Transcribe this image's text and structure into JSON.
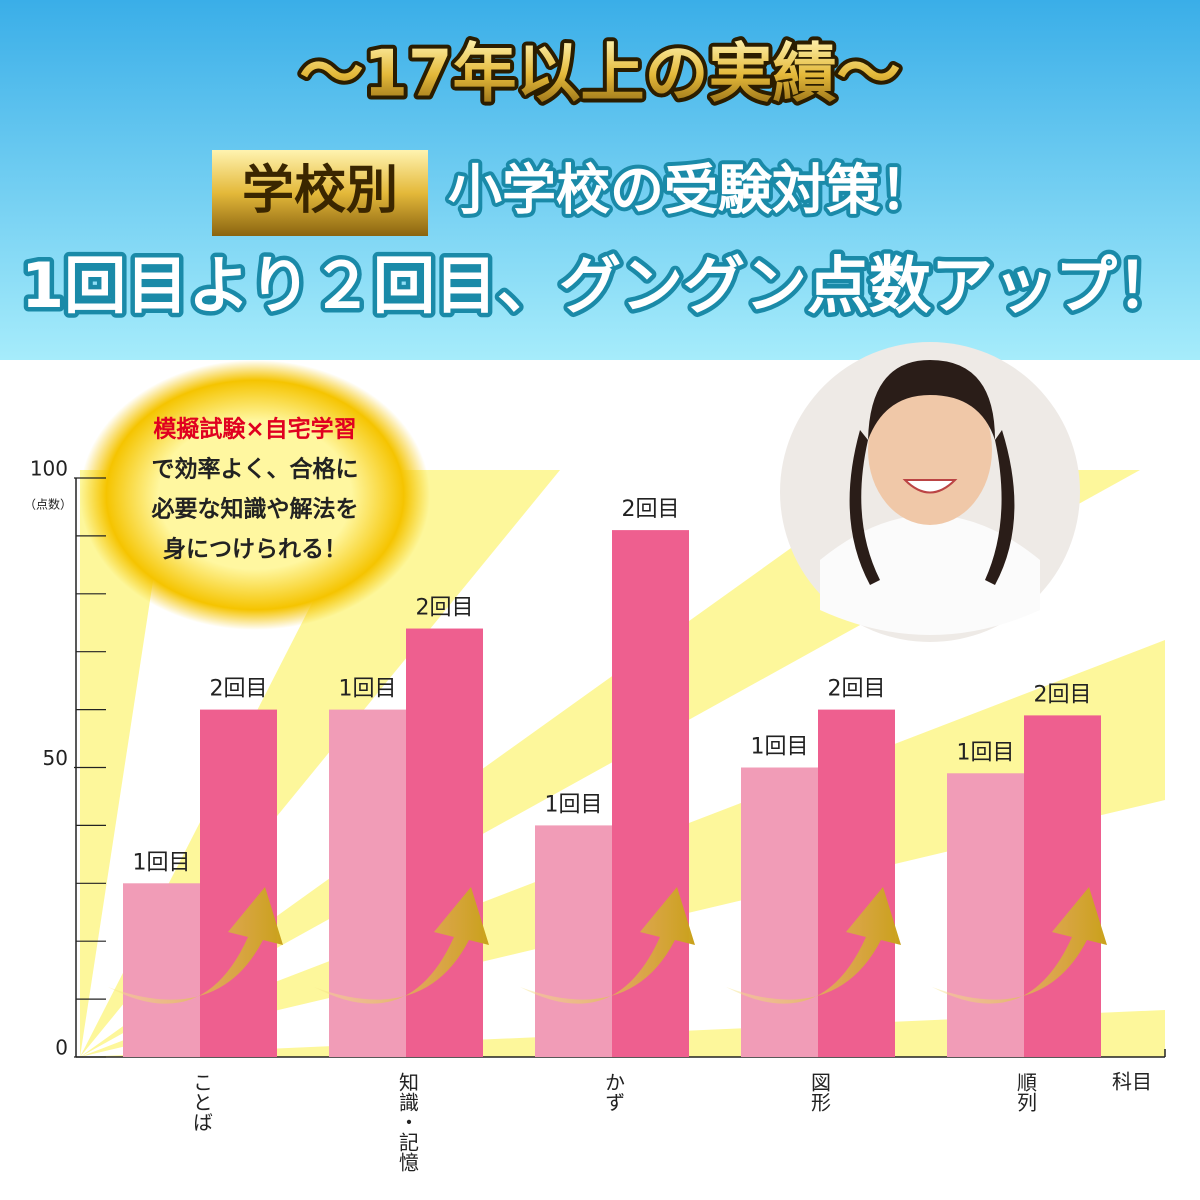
{
  "header": {
    "title": "〜17年以上の実績〜",
    "badge": "学校別",
    "line1": "小学校の受験対策！",
    "line2": "1回目より２回目、グングン点数アップ！"
  },
  "bubble": {
    "lines": [
      "模擬試験×自宅学習",
      "で効率よく、合格に",
      "必要な知識や解法を",
      "身につけられる！"
    ]
  },
  "chart_data": {
    "type": "bar",
    "categories": [
      "ことば",
      "知識・記憶",
      "かず",
      "図形",
      "順列"
    ],
    "series": [
      {
        "name": "1回目",
        "color": "#f19cb7",
        "values": [
          30,
          60,
          40,
          50,
          49
        ]
      },
      {
        "name": "2回目",
        "color": "#ee5f8f",
        "values": [
          60,
          74,
          91,
          60,
          59
        ]
      }
    ],
    "ylim": [
      0,
      100
    ],
    "yticks": [
      0,
      50,
      100
    ],
    "yminorticks": [
      10,
      20,
      30,
      40,
      60,
      70,
      80,
      90
    ],
    "ylabel": "（点数）",
    "xlabel": "科目"
  }
}
